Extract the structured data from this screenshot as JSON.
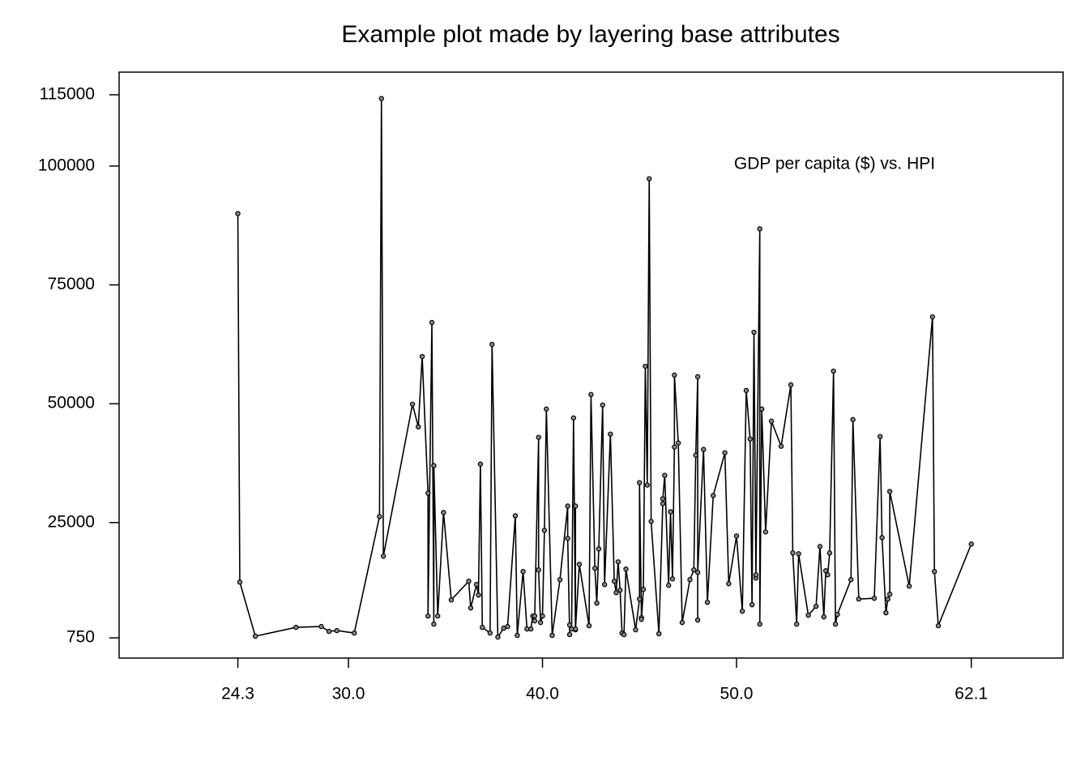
{
  "chart_data": {
    "type": "line",
    "title": "Example plot made by layering base attributes",
    "annotation": "GDP per capita ($) vs. HPI",
    "color": "#000000",
    "markers": true,
    "xlim": [
      18.18,
      66.83
    ],
    "ylim": [
      -3502,
      119762
    ],
    "xticks": [
      24.3,
      {
        "value": 30,
        "label": "30.0"
      },
      {
        "value": 40,
        "label": "40.0"
      },
      {
        "value": 50,
        "label": "50.0"
      },
      62.1
    ],
    "yticks": [
      750,
      25000,
      50000,
      75000,
      100000,
      115000
    ],
    "x": [
      24.3,
      24.4,
      25.2,
      27.3,
      28.6,
      29.0,
      29.4,
      30.3,
      31.6,
      31.7,
      31.8,
      33.3,
      33.6,
      33.8,
      34.1,
      34.1,
      34.3,
      34.4,
      34.4,
      34.6,
      34.9,
      35.3,
      36.2,
      36.3,
      36.6,
      36.7,
      36.8,
      36.9,
      37.3,
      37.4,
      37.7,
      38.0,
      38.2,
      38.6,
      38.7,
      39.0,
      39.2,
      39.4,
      39.5,
      39.6,
      39.6,
      39.8,
      39.8,
      39.9,
      40.0,
      40.1,
      40.2,
      40.5,
      40.9,
      41.3,
      41.3,
      41.4,
      41.4,
      41.5,
      41.6,
      41.7,
      41.7,
      41.7,
      41.9,
      42.4,
      42.5,
      42.7,
      42.8,
      42.9,
      43.1,
      43.2,
      43.5,
      43.7,
      43.8,
      43.9,
      44.0,
      44.1,
      44.2,
      44.3,
      44.8,
      45.0,
      45.0,
      45.1,
      45.1,
      45.2,
      45.3,
      45.4,
      45.5,
      45.6,
      46.0,
      46.2,
      46.2,
      46.3,
      46.5,
      46.6,
      46.7,
      46.8,
      46.8,
      47.0,
      47.2,
      47.6,
      47.8,
      47.9,
      48.0,
      48.0,
      48.0,
      48.3,
      48.5,
      48.8,
      49.4,
      49.6,
      50.0,
      50.3,
      50.5,
      50.7,
      50.8,
      50.9,
      51.0,
      51.0,
      51.2,
      51.2,
      51.3,
      51.5,
      51.8,
      52.3,
      52.8,
      52.9,
      53.1,
      53.2,
      53.7,
      54.1,
      54.3,
      54.5,
      54.6,
      54.7,
      54.8,
      55.0,
      55.1,
      55.2,
      55.9,
      56.0,
      56.3,
      57.1,
      57.4,
      57.5,
      57.7,
      57.8,
      57.9,
      57.9,
      58.9,
      60.1,
      60.2,
      60.4,
      62.1
    ],
    "values": [
      90000,
      12480,
      1100,
      2960,
      3130,
      2110,
      2280,
      1770,
      26260,
      114200,
      17930,
      49900,
      45140,
      59930,
      31200,
      5340,
      67080,
      3640,
      36970,
      5340,
      27110,
      8740,
      12650,
      7040,
      11970,
      9760,
      37310,
      2960,
      1770,
      62480,
      920,
      2790,
      3130,
      26430,
      1260,
      14700,
      2620,
      2620,
      5340,
      4320,
      5340,
      42930,
      15040,
      3980,
      5340,
      23370,
      48880,
      1260,
      13000,
      28470,
      21670,
      1430,
      3470,
      2620,
      47010,
      2450,
      28470,
      2620,
      16220,
      3300,
      51940,
      15380,
      8060,
      19460,
      49730,
      11970,
      43610,
      12650,
      10270,
      16740,
      10770,
      1770,
      1430,
      15210,
      2450,
      8910,
      33400,
      5000,
      4660,
      10950,
      57890,
      32890,
      97340,
      25240,
      1600,
      28980,
      30000,
      34930,
      11800,
      27280,
      13170,
      40890,
      56020,
      41740,
      3980,
      13000,
      15040,
      39190,
      55680,
      4490,
      14530,
      40380,
      8230,
      30680,
      39690,
      12140,
      22180,
      6360,
      52790,
      42590,
      7720,
      65030,
      13330,
      14010,
      86800,
      3640,
      48880,
      23030,
      46330,
      41060,
      53980,
      18610,
      3640,
      18440,
      5510,
      7380,
      19970,
      5170,
      14870,
      14010,
      18610,
      56870,
      3640,
      5680,
      13000,
      46670,
      8910,
      9080,
      43100,
      21840,
      6020,
      8910,
      9930,
      31540,
      11630,
      68270,
      14700,
      3300,
      20480
    ]
  }
}
